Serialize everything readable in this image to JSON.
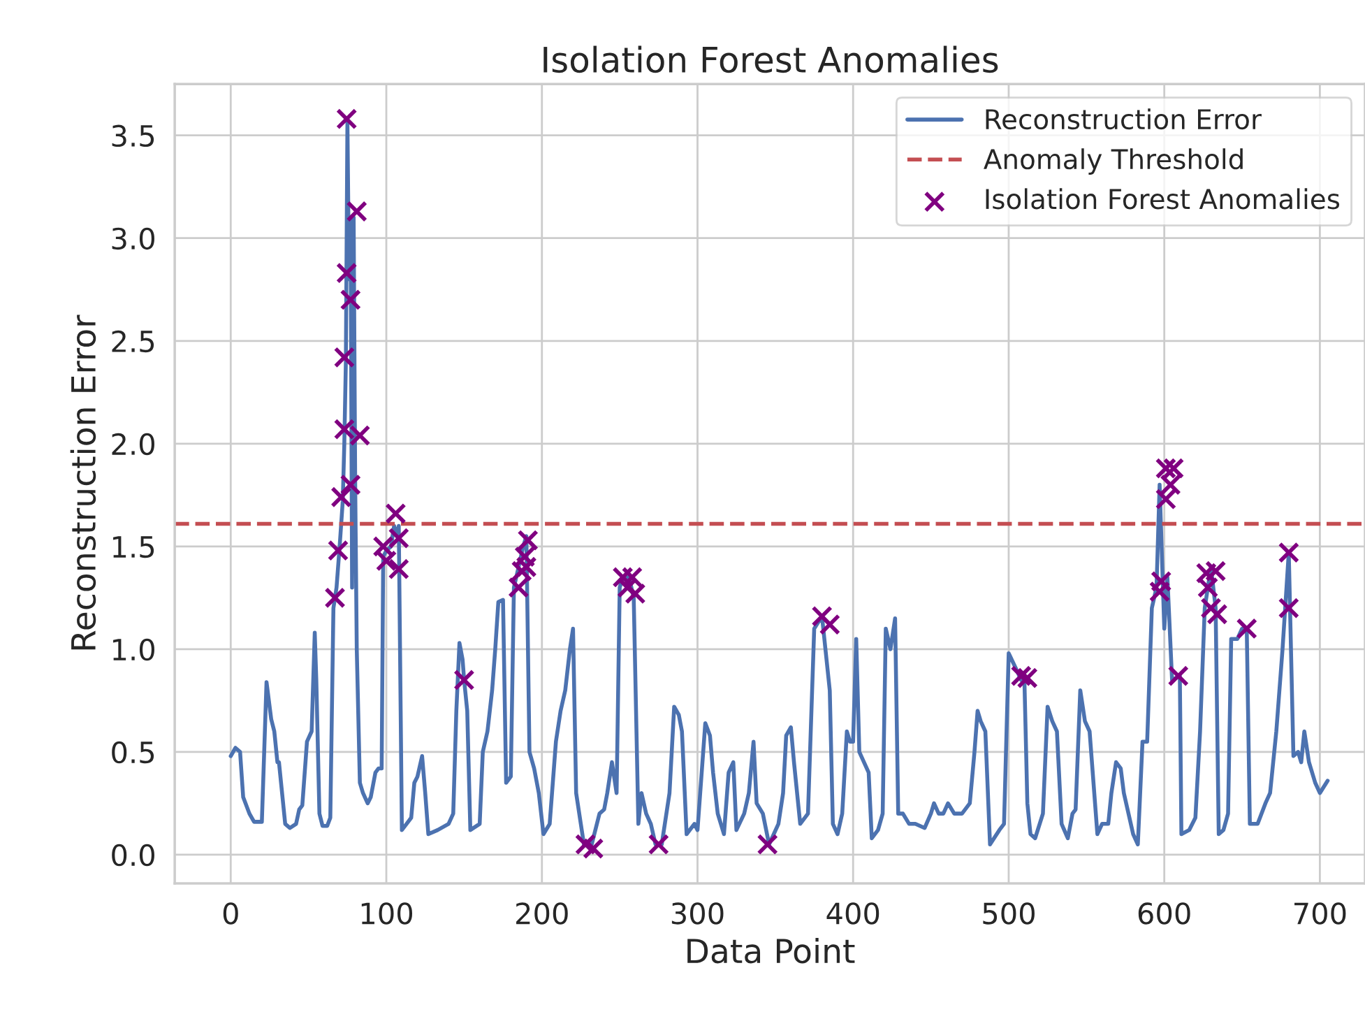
{
  "chart_data": {
    "type": "line",
    "title": "Isolation Forest Anomalies",
    "xlabel": "Data Point",
    "ylabel": "Reconstruction Error",
    "xlim": [
      -36,
      729
    ],
    "ylim": [
      -0.14,
      3.75
    ],
    "xticks": [
      0,
      100,
      200,
      300,
      400,
      500,
      600,
      700
    ],
    "yticks": [
      {
        "value": 0,
        "label": "0.0"
      },
      0.5,
      {
        "value": 1,
        "label": "1.0"
      },
      1.5,
      {
        "value": 2,
        "label": "2.0"
      },
      2.5,
      {
        "value": 3,
        "label": "3.0"
      },
      3.5
    ],
    "grid": true,
    "legend": "top right",
    "series": [
      {
        "name": "Reconstruction Error",
        "color": "#4c72b0",
        "line_style": "solid",
        "marker": "none",
        "x": [
          0,
          3,
          6,
          8,
          12,
          15,
          20,
          23,
          26,
          28,
          30,
          31,
          35,
          38,
          42,
          44,
          46,
          49,
          52,
          54,
          55,
          57,
          59,
          62,
          64,
          66,
          68,
          70,
          72,
          73,
          74,
          75,
          76,
          77,
          78,
          79,
          80,
          81,
          83,
          85,
          88,
          90,
          93,
          95,
          97,
          98,
          100,
          103,
          105,
          107,
          108,
          110,
          113,
          116,
          118,
          120,
          123,
          125,
          127,
          133,
          140,
          143,
          145,
          147,
          149,
          150,
          152,
          154,
          160,
          162,
          165,
          168,
          170,
          172,
          175,
          177,
          180,
          182,
          185,
          188,
          190,
          192,
          195,
          198,
          201,
          205,
          209,
          212,
          215,
          218,
          220,
          222,
          225,
          227,
          232,
          237,
          240,
          242,
          245,
          248,
          250,
          252,
          256,
          259,
          262,
          264,
          267,
          270,
          273,
          277,
          282,
          285,
          288,
          290,
          293,
          298,
          300,
          305,
          308,
          310,
          313,
          317,
          320,
          323,
          325,
          330,
          333,
          336,
          338,
          342,
          346,
          352,
          355,
          357,
          360,
          362,
          366,
          371,
          375,
          380,
          385,
          387,
          390,
          393,
          396,
          398,
          400,
          402,
          404,
          407,
          410,
          412,
          416,
          419,
          421,
          424,
          427,
          429,
          432,
          436,
          440,
          446,
          450,
          452,
          455,
          458,
          461,
          465,
          470,
          475,
          478,
          480,
          482,
          485,
          488,
          494,
          497,
          500,
          505,
          508,
          510,
          512,
          514,
          517,
          522,
          525,
          528,
          531,
          534,
          538,
          541,
          543,
          546,
          549,
          552,
          557,
          560,
          564,
          566,
          569,
          572,
          574,
          577,
          580,
          583,
          586,
          589,
          592,
          595,
          597,
          600,
          602,
          605,
          610,
          611,
          616,
          620,
          623,
          626,
          630,
          633,
          635,
          638,
          641,
          643,
          647,
          650,
          653,
          655,
          660,
          665,
          668,
          672,
          676,
          680,
          683,
          686,
          688,
          690,
          693,
          697,
          700,
          705
        ],
        "values": [
          0.48,
          0.52,
          0.5,
          0.28,
          0.2,
          0.16,
          0.16,
          0.84,
          0.66,
          0.6,
          0.45,
          0.45,
          0.15,
          0.13,
          0.15,
          0.22,
          0.24,
          0.55,
          0.6,
          1.08,
          0.85,
          0.2,
          0.14,
          0.14,
          0.18,
          1.2,
          1.3,
          1.5,
          1.72,
          2.0,
          2.4,
          3.57,
          2.8,
          3.1,
          1.3,
          3.1,
          1.8,
          1.0,
          0.35,
          0.3,
          0.25,
          0.28,
          0.4,
          0.42,
          0.42,
          1.45,
          1.48,
          1.5,
          1.6,
          1.55,
          1.6,
          0.12,
          0.15,
          0.18,
          0.35,
          0.38,
          0.48,
          0.3,
          0.1,
          0.12,
          0.15,
          0.2,
          0.7,
          1.03,
          0.95,
          0.85,
          0.7,
          0.12,
          0.15,
          0.5,
          0.6,
          0.8,
          1.0,
          1.23,
          1.24,
          0.35,
          0.38,
          1.3,
          1.4,
          1.5,
          1.55,
          0.5,
          0.42,
          0.3,
          0.1,
          0.15,
          0.55,
          0.7,
          0.8,
          1.0,
          1.1,
          0.3,
          0.15,
          0.05,
          0.05,
          0.2,
          0.22,
          0.3,
          0.45,
          0.3,
          1.3,
          1.35,
          1.35,
          1.25,
          0.15,
          0.3,
          0.2,
          0.15,
          0.05,
          0.05,
          0.3,
          0.72,
          0.68,
          0.6,
          0.1,
          0.15,
          0.12,
          0.64,
          0.58,
          0.4,
          0.2,
          0.1,
          0.4,
          0.45,
          0.12,
          0.2,
          0.3,
          0.55,
          0.25,
          0.2,
          0.05,
          0.15,
          0.3,
          0.58,
          0.62,
          0.45,
          0.15,
          0.2,
          1.1,
          1.16,
          0.8,
          0.15,
          0.1,
          0.2,
          0.6,
          0.55,
          0.55,
          1.05,
          0.5,
          0.45,
          0.4,
          0.08,
          0.12,
          0.2,
          1.1,
          1.0,
          1.15,
          0.2,
          0.2,
          0.15,
          0.15,
          0.13,
          0.2,
          0.25,
          0.2,
          0.2,
          0.25,
          0.2,
          0.2,
          0.25,
          0.5,
          0.7,
          0.65,
          0.6,
          0.05,
          0.12,
          0.15,
          0.98,
          0.9,
          0.85,
          0.88,
          0.25,
          0.1,
          0.08,
          0.2,
          0.72,
          0.65,
          0.6,
          0.15,
          0.08,
          0.2,
          0.22,
          0.8,
          0.65,
          0.6,
          0.1,
          0.15,
          0.15,
          0.3,
          0.45,
          0.42,
          0.3,
          0.2,
          0.1,
          0.05,
          0.55,
          0.55,
          1.2,
          1.3,
          1.8,
          1.1,
          1.35,
          0.85,
          0.87,
          0.1,
          0.12,
          0.18,
          0.6,
          1.2,
          1.4,
          1.2,
          0.1,
          0.12,
          0.2,
          1.05,
          1.05,
          1.1,
          1.1,
          0.15,
          0.15,
          0.25,
          0.3,
          0.6,
          1.0,
          1.47,
          0.48,
          0.5,
          0.45,
          0.6,
          0.45,
          0.35,
          0.3,
          0.36
        ]
      },
      {
        "name": "Isolation Forest Anomalies",
        "type": "scatter",
        "color": "#800080",
        "marker": "cross",
        "x": [
          67,
          69,
          71,
          73,
          73,
          74.5,
          74.5,
          77,
          77,
          81,
          83,
          98,
          100,
          106,
          108,
          108,
          150,
          185,
          187,
          189,
          190,
          191,
          228,
          233,
          252,
          255,
          258,
          260,
          275,
          345,
          380,
          385,
          508,
          512,
          597,
          598,
          601,
          601,
          604,
          606,
          609,
          627,
          628,
          630,
          633,
          634,
          653,
          680,
          680
        ],
        "values": [
          1.25,
          1.48,
          1.74,
          2.07,
          2.42,
          2.83,
          3.58,
          2.7,
          1.8,
          3.13,
          2.04,
          1.5,
          1.43,
          1.66,
          1.54,
          1.39,
          0.85,
          1.3,
          1.38,
          1.45,
          1.4,
          1.53,
          0.05,
          0.03,
          1.35,
          1.3,
          1.35,
          1.27,
          0.05,
          0.05,
          1.16,
          1.12,
          0.87,
          0.86,
          1.28,
          1.33,
          1.88,
          1.73,
          1.8,
          1.88,
          0.87,
          1.37,
          1.3,
          1.2,
          1.38,
          1.17,
          1.1,
          1.47,
          1.2
        ]
      }
    ],
    "ref_lines": [
      {
        "axis": "y",
        "value": 1.61,
        "label": "Anomaly Threshold",
        "color": "#c44e52",
        "line_style": "dashed"
      }
    ]
  }
}
